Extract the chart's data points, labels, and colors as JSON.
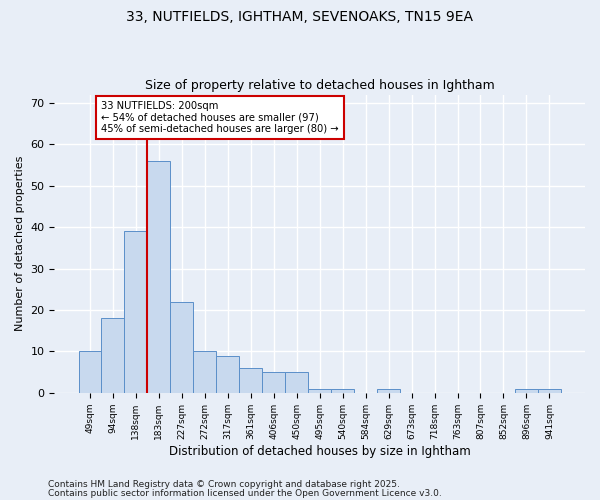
{
  "title1": "33, NUTFIELDS, IGHTHAM, SEVENOAKS, TN15 9EA",
  "title2": "Size of property relative to detached houses in Ightham",
  "xlabel": "Distribution of detached houses by size in Ightham",
  "ylabel": "Number of detached properties",
  "categories": [
    "49sqm",
    "94sqm",
    "138sqm",
    "183sqm",
    "227sqm",
    "272sqm",
    "317sqm",
    "361sqm",
    "406sqm",
    "450sqm",
    "495sqm",
    "540sqm",
    "584sqm",
    "629sqm",
    "673sqm",
    "718sqm",
    "763sqm",
    "807sqm",
    "852sqm",
    "896sqm",
    "941sqm"
  ],
  "values": [
    10,
    18,
    39,
    56,
    22,
    10,
    9,
    6,
    5,
    5,
    1,
    1,
    0,
    1,
    0,
    0,
    0,
    0,
    0,
    1,
    1
  ],
  "bar_color": "#c8d9ee",
  "bar_edge_color": "#5b8fc9",
  "red_line_index": 3,
  "red_line_color": "#cc0000",
  "annotation_text": "33 NUTFIELDS: 200sqm\n← 54% of detached houses are smaller (97)\n45% of semi-detached houses are larger (80) →",
  "annotation_box_color": "#ffffff",
  "annotation_box_edge": "#cc0000",
  "ylim": [
    0,
    72
  ],
  "yticks": [
    0,
    10,
    20,
    30,
    40,
    50,
    60,
    70
  ],
  "footer1": "Contains HM Land Registry data © Crown copyright and database right 2025.",
  "footer2": "Contains public sector information licensed under the Open Government Licence v3.0.",
  "bg_color": "#e8eef7",
  "grid_color": "#ffffff"
}
